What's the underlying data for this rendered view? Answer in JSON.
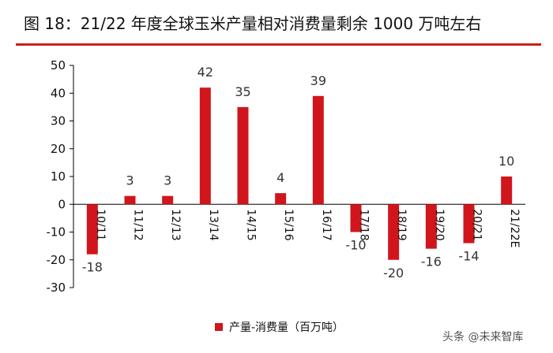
{
  "title": "图 18：21/22 年度全球玉米产量相对消费量剩余 1000 万吨左右",
  "watermark": "头条 @未来智库",
  "colors": {
    "bar": "#d0161c",
    "title_rule": "#c8201e",
    "text": "#111111"
  },
  "chart_data": {
    "type": "bar",
    "categories": [
      "10/11",
      "11/12",
      "12/13",
      "13/14",
      "14/15",
      "15/16",
      "16/17",
      "17/18",
      "18/19",
      "19/20",
      "20/21",
      "21/22E"
    ],
    "series": [
      {
        "name": "产量-消费量（百万吨）",
        "values": [
          -18,
          3,
          3,
          42,
          35,
          4,
          39,
          -10,
          -20,
          -16,
          -14,
          10
        ]
      }
    ],
    "data_labels": [
      "-18",
      "3",
      "3",
      "42",
      "35",
      "4",
      "39",
      "-10",
      "-20",
      "-16",
      "-14",
      "10"
    ],
    "y_ticks": [
      50,
      40,
      30,
      20,
      10,
      0,
      -10,
      -20,
      -30
    ],
    "ylim": [
      -30,
      50
    ],
    "grid": false,
    "legend_position": "bottom-center"
  }
}
